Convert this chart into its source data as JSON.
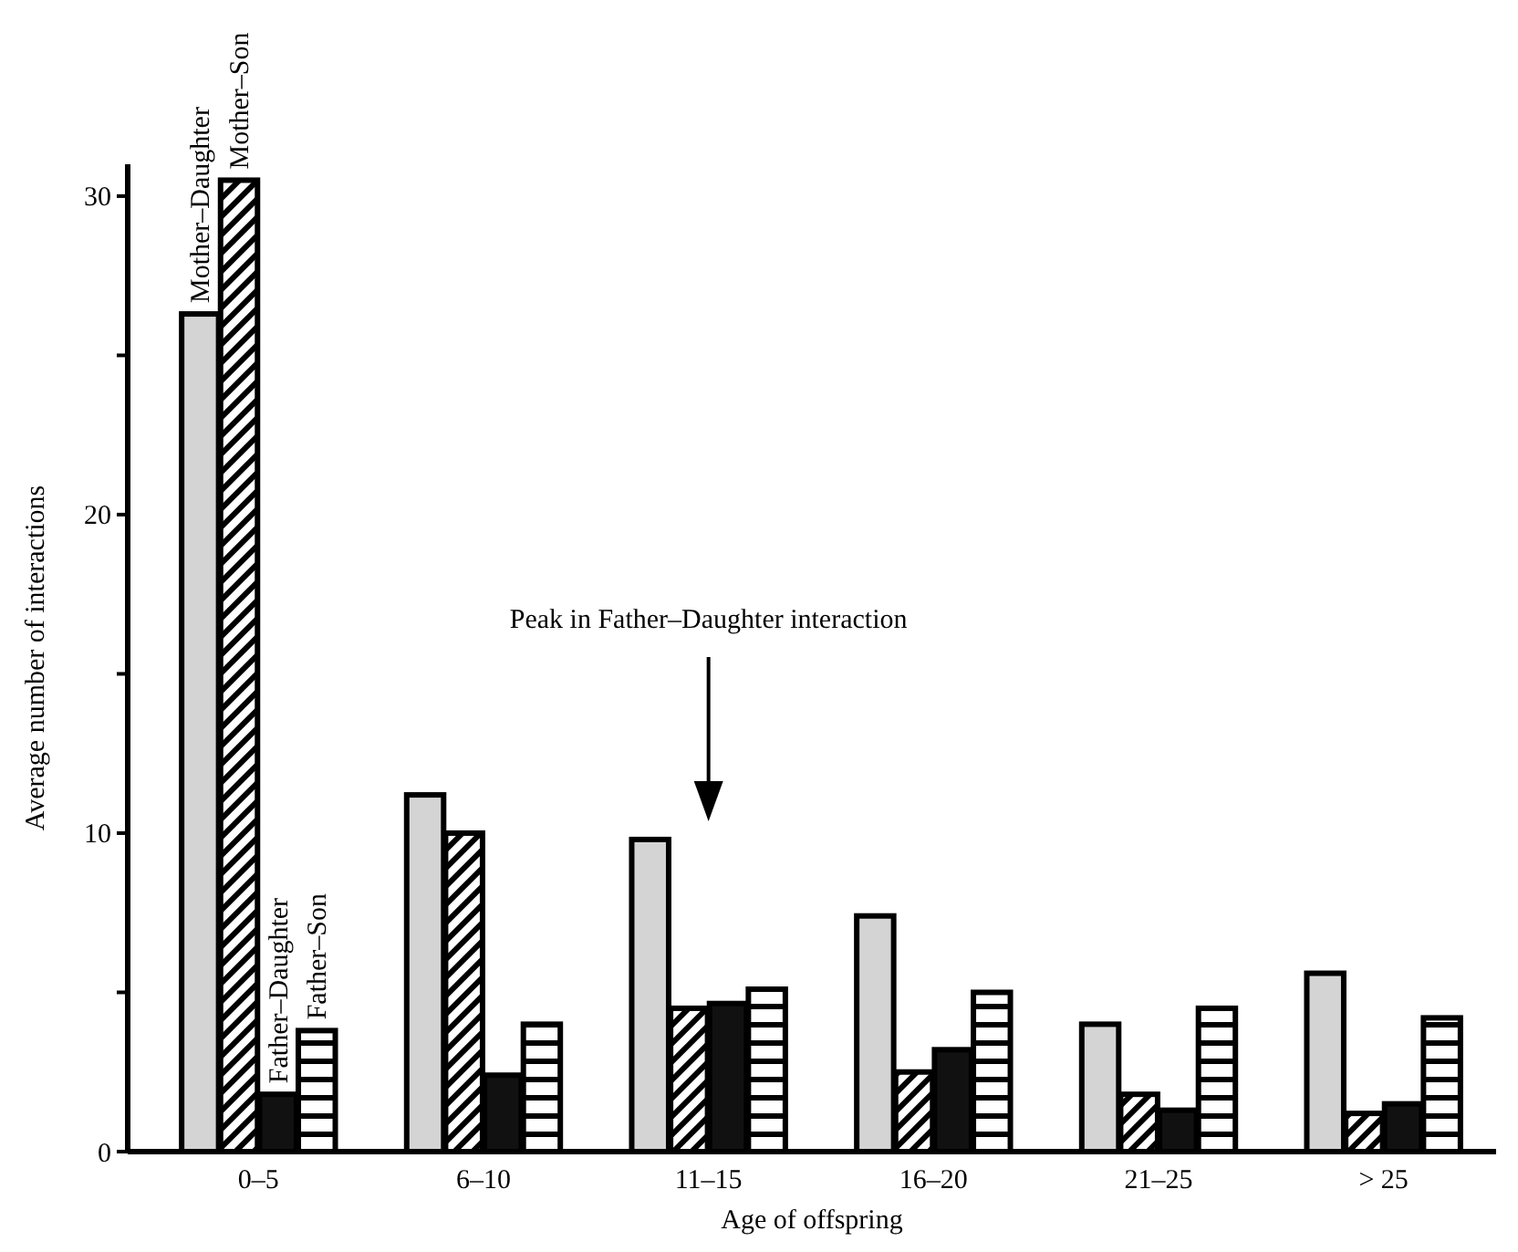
{
  "chart_data": {
    "type": "bar",
    "xlabel": "Age of offspring",
    "ylabel": "Average number of interactions",
    "categories": [
      "0–5",
      "6–10",
      "11–15",
      "16–20",
      "21–25",
      "> 25"
    ],
    "series": [
      {
        "name": "Mother–Daughter",
        "color": "#d4d4d4",
        "values": [
          26.3,
          11.2,
          9.8,
          7.4,
          4.0,
          5.6
        ]
      },
      {
        "name": "Mother–Son",
        "color": "#000000",
        "values": [
          30.5,
          10.0,
          4.5,
          2.5,
          1.8,
          1.2
        ]
      },
      {
        "name": "Father–Daughter",
        "color": "#111111",
        "values": [
          1.8,
          2.4,
          4.65,
          3.2,
          1.3,
          1.5
        ]
      },
      {
        "name": "Father–Son",
        "color": "#000000",
        "values": [
          3.8,
          4.0,
          5.1,
          5.0,
          4.5,
          4.2
        ]
      }
    ],
    "ylim": [
      0,
      31
    ],
    "yticks": [
      0,
      {
        "value": 5,
        "label": null
      },
      10,
      {
        "value": 15,
        "label": null
      },
      20,
      {
        "value": 25,
        "label": null
      },
      30
    ],
    "legend": false,
    "annotations": [
      "Peak in Father–Daughter interaction"
    ]
  }
}
